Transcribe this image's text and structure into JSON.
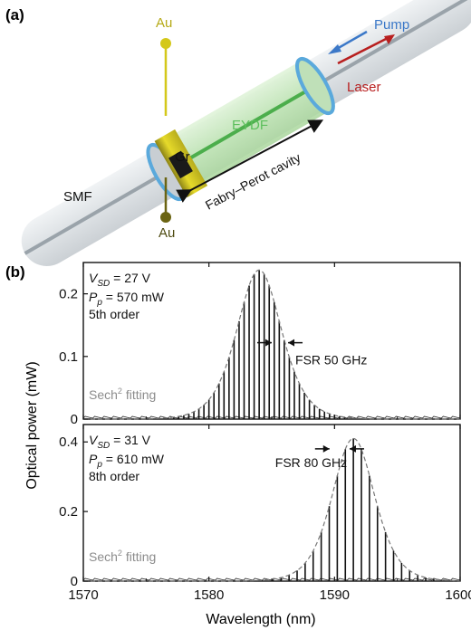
{
  "panel_a": {
    "label": "(a)",
    "labels": {
      "au_top": "Au",
      "au_bottom": "Au",
      "pump": "Pump",
      "laser": "Laser",
      "eydf": "EYDF",
      "gr": "Gr",
      "smf": "SMF",
      "cavity": "Fabry–Perot cavity"
    },
    "colors": {
      "au": "#d4c81a",
      "au_dark": "#6b6412",
      "pump": "#3b78c8",
      "laser": "#b81f1f",
      "eydf": "#5cbf5c",
      "fiber_glass": "#d9dee2",
      "mirror": "#5aa9dc",
      "graphene": "#1a1a1a"
    }
  },
  "panel_b": {
    "label": "(b)",
    "ylabel": "Optical power (mW)",
    "xlabel": "Wavelength (nm)"
  },
  "chart_data": [
    {
      "type": "line",
      "xlim": [
        1570,
        1600
      ],
      "ylim": [
        0,
        0.25
      ],
      "xticks": [
        1570,
        1580,
        1590,
        1600
      ],
      "yticks": [
        0,
        0.1,
        0.2
      ],
      "ytick_labels": [
        "0",
        "0.1",
        "0.2"
      ],
      "show_x_tick_labels": false,
      "grid": false,
      "annotation": {
        "v_sd_prefix": "V",
        "v_sd_sub": "SD",
        "v_sd_value": " = 27 V",
        "p_p_prefix": "P",
        "p_p_sub": "p",
        "p_p_value": " = 570 mW",
        "order": "5th order",
        "fsr": "FSR 50 GHz",
        "fit_label": "Sech",
        "fit_sup": "2",
        "fit_suffix": " fitting"
      },
      "comb": {
        "center_nm": 1584.0,
        "peak_mW": 0.238,
        "fwhm_nm": 4.2,
        "fsr_nm": 0.4
      },
      "fsr_marker_nm": [
        1585.0,
        1586.3
      ],
      "fsr_marker_y": 0.122
    },
    {
      "type": "line",
      "xlim": [
        1570,
        1600
      ],
      "ylim": [
        0,
        0.45
      ],
      "xticks": [
        1570,
        1580,
        1590,
        1600
      ],
      "yticks": [
        0,
        0.2,
        0.4
      ],
      "ytick_labels": [
        "0",
        "0.2",
        "0.4"
      ],
      "show_x_tick_labels": true,
      "grid": false,
      "annotation": {
        "v_sd_prefix": "V",
        "v_sd_sub": "SD",
        "v_sd_value": " = 31 V",
        "p_p_prefix": "P",
        "p_p_sub": "p",
        "p_p_value": " = 610 mW",
        "order": "8th order",
        "fsr": "FSR 80 GHz",
        "fit_label": "Sech",
        "fit_sup": "2",
        "fit_suffix": " fitting"
      },
      "comb": {
        "center_nm": 1591.5,
        "peak_mW": 0.41,
        "fwhm_nm": 4.0,
        "fsr_nm": 0.64
      },
      "fsr_marker_nm": [
        1589.6,
        1591.2
      ],
      "fsr_marker_y": 0.38
    }
  ]
}
